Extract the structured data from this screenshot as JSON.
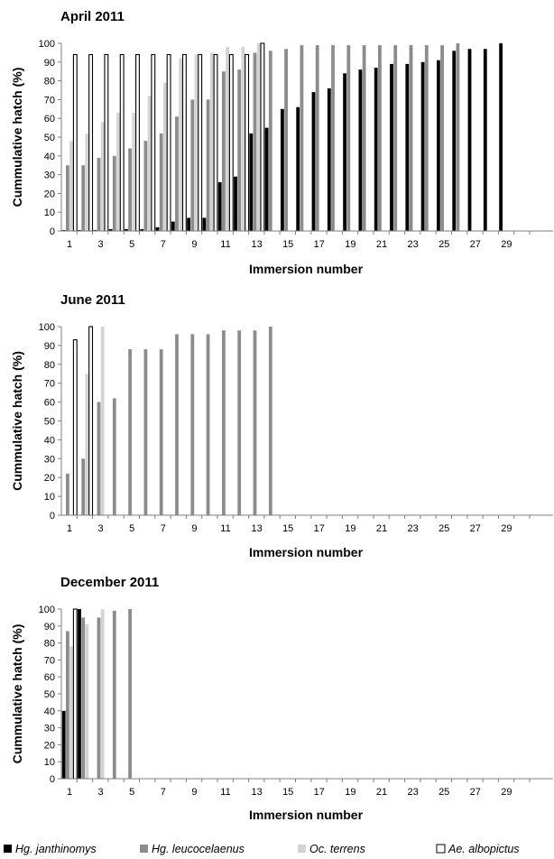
{
  "colors": {
    "janthinomys": "#000000",
    "leucocelaenus": "#8c8c8c",
    "terrens": "#d3d3d3",
    "albopictus": "#ffffff",
    "axis": "#7f7f7f"
  },
  "legend": {
    "placement": "bottom",
    "items": [
      {
        "label": "Hg. janthinomys",
        "key": "janthinomys"
      },
      {
        "label": "Hg. leucocelaenus",
        "key": "leucocelaenus"
      },
      {
        "label": "Oc. terrens",
        "key": "terrens"
      },
      {
        "label": "Ae. albopictus",
        "key": "albopictus"
      }
    ]
  },
  "chart_data": [
    {
      "type": "bar",
      "title": "April 2011",
      "xlabel": "Immersion number",
      "ylabel": "Cummulative hatch (%)",
      "ylim": [
        0,
        100
      ],
      "yticks": [
        0,
        10,
        20,
        30,
        40,
        50,
        60,
        70,
        80,
        90,
        100
      ],
      "categories": [
        1,
        2,
        3,
        4,
        5,
        6,
        7,
        8,
        9,
        10,
        11,
        12,
        13,
        14,
        15,
        16,
        17,
        18,
        19,
        20,
        21,
        22,
        23,
        24,
        25,
        26,
        27,
        28,
        29,
        30
      ],
      "xtick_labels": [
        "1",
        "3",
        "5",
        "7",
        "9",
        "11",
        "13",
        "15",
        "17",
        "19",
        "21",
        "23",
        "25",
        "27",
        "29"
      ],
      "series": [
        {
          "name": "Hg. janthinomys",
          "key": "janthinomys",
          "values": [
            0.5,
            0.5,
            0.5,
            1,
            1,
            1,
            2,
            5,
            7,
            7,
            26,
            29,
            52,
            55,
            65,
            66,
            74,
            76,
            84,
            86,
            87,
            89,
            89,
            90,
            91,
            96,
            97,
            97,
            100,
            null
          ]
        },
        {
          "name": "Hg. leucocelaenus",
          "key": "leucocelaenus",
          "values": [
            35,
            35,
            39,
            40,
            44,
            48,
            52,
            61,
            70,
            70,
            85,
            86,
            95,
            96,
            97,
            99,
            99,
            99,
            99,
            99,
            99,
            99,
            99,
            99,
            99,
            100,
            null,
            null,
            null,
            null
          ]
        },
        {
          "name": "Oc. terrens",
          "key": "terrens",
          "values": [
            48,
            52,
            58,
            63,
            63,
            72,
            79,
            92,
            94,
            95,
            98,
            98,
            100,
            null,
            null,
            null,
            null,
            null,
            null,
            null,
            null,
            null,
            null,
            null,
            null,
            null,
            null,
            null,
            null,
            null
          ]
        },
        {
          "name": "Ae. albopictus",
          "key": "albopictus",
          "values": [
            94,
            94,
            94,
            94,
            94,
            94,
            94,
            94,
            94,
            94,
            94,
            94,
            100,
            null,
            null,
            null,
            null,
            null,
            null,
            null,
            null,
            null,
            null,
            null,
            null,
            null,
            null,
            null,
            null,
            null
          ]
        }
      ]
    },
    {
      "type": "bar",
      "title": "June 2011",
      "xlabel": "Immersion number",
      "ylabel": "Cummulative hatch (%)",
      "ylim": [
        0,
        100
      ],
      "yticks": [
        0,
        10,
        20,
        30,
        40,
        50,
        60,
        70,
        80,
        90,
        100
      ],
      "categories": [
        1,
        2,
        3,
        4,
        5,
        6,
        7,
        8,
        9,
        10,
        11,
        12,
        13,
        14,
        15,
        16,
        17,
        18,
        19,
        20,
        21,
        22,
        23,
        24,
        25,
        26,
        27,
        28,
        29,
        30
      ],
      "xtick_labels": [
        "1",
        "3",
        "5",
        "7",
        "9",
        "11",
        "13",
        "15",
        "17",
        "19",
        "21",
        "23",
        "25",
        "27",
        "29"
      ],
      "series": [
        {
          "name": "Hg. janthinomys",
          "key": "janthinomys",
          "values": [
            null,
            null,
            null,
            null,
            null,
            null,
            null,
            null,
            null,
            null,
            null,
            null,
            null,
            null,
            null,
            null,
            null,
            null,
            null,
            null,
            null,
            null,
            null,
            null,
            null,
            null,
            null,
            null,
            null,
            null
          ]
        },
        {
          "name": "Hg. leucocelaenus",
          "key": "leucocelaenus",
          "values": [
            22,
            30,
            60,
            62,
            88,
            88,
            88,
            96,
            96,
            96,
            98,
            98,
            98,
            100,
            null,
            null,
            null,
            null,
            null,
            null,
            null,
            null,
            null,
            null,
            null,
            null,
            null,
            null,
            null,
            null
          ]
        },
        {
          "name": "Oc. terrens",
          "key": "terrens",
          "values": [
            null,
            75,
            100,
            null,
            null,
            null,
            null,
            null,
            null,
            null,
            null,
            null,
            null,
            null,
            null,
            null,
            null,
            null,
            null,
            null,
            null,
            null,
            null,
            null,
            null,
            null,
            null,
            null,
            null,
            null
          ]
        },
        {
          "name": "Ae. albopictus",
          "key": "albopictus",
          "values": [
            93,
            100,
            null,
            null,
            null,
            null,
            null,
            null,
            null,
            null,
            null,
            null,
            null,
            null,
            null,
            null,
            null,
            null,
            null,
            null,
            null,
            null,
            null,
            null,
            null,
            null,
            null,
            null,
            null,
            null
          ]
        }
      ]
    },
    {
      "type": "bar",
      "title": "December 2011",
      "xlabel": "Immersion number",
      "ylabel": "Cummulative hatch (%)",
      "ylim": [
        0,
        100
      ],
      "yticks": [
        0,
        10,
        20,
        30,
        40,
        50,
        60,
        70,
        80,
        90,
        100
      ],
      "categories": [
        1,
        2,
        3,
        4,
        5,
        6,
        7,
        8,
        9,
        10,
        11,
        12,
        13,
        14,
        15,
        16,
        17,
        18,
        19,
        20,
        21,
        22,
        23,
        24,
        25,
        26,
        27,
        28,
        29,
        30
      ],
      "xtick_labels": [
        "1",
        "3",
        "5",
        "7",
        "9",
        "11",
        "13",
        "15",
        "17",
        "19",
        "21",
        "23",
        "25",
        "27",
        "29"
      ],
      "series": [
        {
          "name": "Hg. janthinomys",
          "key": "janthinomys",
          "values": [
            40,
            100,
            null,
            null,
            null,
            null,
            null,
            null,
            null,
            null,
            null,
            null,
            null,
            null,
            null,
            null,
            null,
            null,
            null,
            null,
            null,
            null,
            null,
            null,
            null,
            null,
            null,
            null,
            null,
            null
          ]
        },
        {
          "name": "Hg. leucocelaenus",
          "key": "leucocelaenus",
          "values": [
            87,
            95,
            95,
            99,
            100,
            null,
            null,
            null,
            null,
            null,
            null,
            null,
            null,
            null,
            null,
            null,
            null,
            null,
            null,
            null,
            null,
            null,
            null,
            null,
            null,
            null,
            null,
            null,
            null,
            null
          ]
        },
        {
          "name": "Oc. terrens",
          "key": "terrens",
          "values": [
            78,
            91,
            100,
            null,
            null,
            null,
            null,
            null,
            null,
            null,
            null,
            null,
            null,
            null,
            null,
            null,
            null,
            null,
            null,
            null,
            null,
            null,
            null,
            null,
            null,
            null,
            null,
            null,
            null,
            null
          ]
        },
        {
          "name": "Ae. albopictus",
          "key": "albopictus",
          "values": [
            100,
            null,
            null,
            null,
            null,
            null,
            null,
            null,
            null,
            null,
            null,
            null,
            null,
            null,
            null,
            null,
            null,
            null,
            null,
            null,
            null,
            null,
            null,
            null,
            null,
            null,
            null,
            null,
            null,
            null
          ]
        }
      ]
    }
  ]
}
